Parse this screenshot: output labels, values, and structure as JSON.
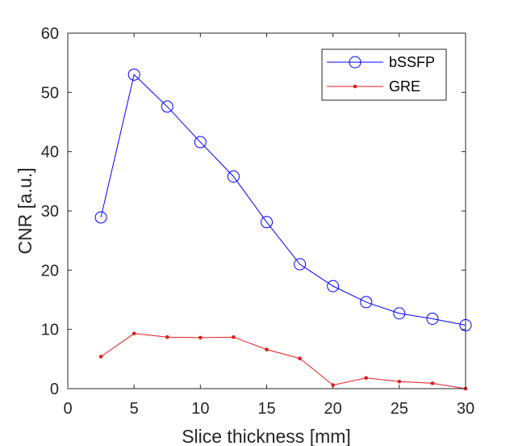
{
  "chart_data": {
    "type": "line",
    "xlabel": "Slice thickness [mm]",
    "ylabel": "CNR [a.u.]",
    "xlim": [
      0,
      30
    ],
    "ylim": [
      0,
      60
    ],
    "xticks": [
      0,
      5,
      10,
      15,
      20,
      25,
      30
    ],
    "yticks": [
      0,
      10,
      20,
      30,
      40,
      50,
      60
    ],
    "xtick_labels": [
      "0",
      "5",
      "10",
      "15",
      "20",
      "25",
      "30"
    ],
    "ytick_labels": [
      "0",
      "10",
      "20",
      "30",
      "40",
      "50",
      "60"
    ],
    "grid": false,
    "legend_position": "top-right",
    "x": [
      2.5,
      5,
      7.5,
      10,
      12.5,
      15,
      17.5,
      20,
      22.5,
      25,
      27.5,
      30
    ],
    "series": [
      {
        "name": "bSSFP",
        "marker": "open-circle",
        "color": "#0000ff",
        "values": [
          28.9,
          53.0,
          47.6,
          41.6,
          35.8,
          28.1,
          21.0,
          17.3,
          14.6,
          12.7,
          11.8,
          10.7
        ]
      },
      {
        "name": "GRE",
        "marker": "dot",
        "color": "#e31a1c",
        "values": [
          5.4,
          9.3,
          8.7,
          8.6,
          8.7,
          6.6,
          5.1,
          0.6,
          1.8,
          1.2,
          0.9,
          0.0
        ]
      }
    ]
  }
}
